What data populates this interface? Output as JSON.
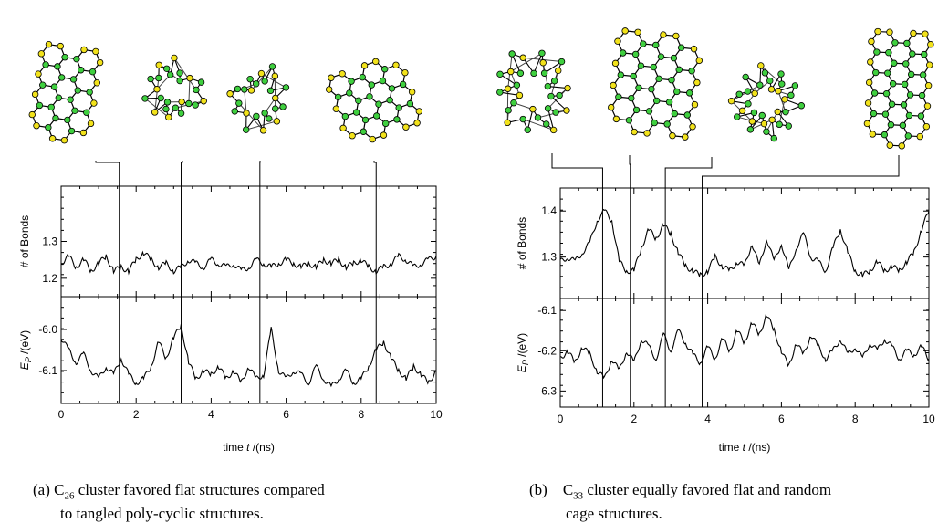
{
  "colors": {
    "edge_atom": "#f2e21b",
    "core_atom": "#3fcf3f",
    "bond": "#000000",
    "trace": "#000000"
  },
  "chart_data": [
    {
      "type": "line",
      "panel": "a",
      "caption": {
        "tag": "(a)",
        "text_lines": [
          "C26 cluster favored flat structures compared",
          "to tangled poly-cyclic structures."
        ],
        "species": "C",
        "subscript": "26",
        "rest1": " cluster favored flat structures compared",
        "line2": "to tangled poly-cyclic structures."
      },
      "xlabel": "time t /(ns)",
      "xlabel_parts": {
        "pre": "time ",
        "var": "t",
        "post": " /(ns)"
      },
      "xlim": [
        0,
        10
      ],
      "xticks": [
        "0",
        "2",
        "4",
        "6",
        "8",
        "10"
      ],
      "snapshot_times": [
        1.55,
        3.2,
        5.3,
        8.4
      ],
      "subplots": [
        {
          "ylabel": "# of Bonds",
          "ylim": [
            1.15,
            1.45
          ],
          "yticks": [
            "1.2",
            "1.3"
          ],
          "series": [
            {
              "x": [
                0,
                0.2,
                0.4,
                0.6,
                0.8,
                1.0,
                1.2,
                1.4,
                1.6,
                1.8,
                2.0,
                2.2,
                2.4,
                2.6,
                2.8,
                3.0,
                3.2,
                3.4,
                3.6,
                3.8,
                4.0,
                4.2,
                4.4,
                4.6,
                4.8,
                5.0,
                5.2,
                5.4,
                5.6,
                5.8,
                6.0,
                6.2,
                6.4,
                6.6,
                6.8,
                7.0,
                7.2,
                7.4,
                7.6,
                7.8,
                8.0,
                8.2,
                8.4,
                8.6,
                8.8,
                9.0,
                9.2,
                9.4,
                9.6,
                9.8,
                10.0
              ],
              "y": [
                1.24,
                1.26,
                1.23,
                1.25,
                1.22,
                1.24,
                1.26,
                1.22,
                1.23,
                1.22,
                1.25,
                1.27,
                1.25,
                1.23,
                1.24,
                1.22,
                1.23,
                1.25,
                1.24,
                1.23,
                1.25,
                1.24,
                1.23,
                1.24,
                1.22,
                1.23,
                1.25,
                1.24,
                1.23,
                1.24,
                1.25,
                1.24,
                1.23,
                1.24,
                1.23,
                1.25,
                1.24,
                1.25,
                1.23,
                1.24,
                1.25,
                1.23,
                1.22,
                1.23,
                1.24,
                1.26,
                1.25,
                1.23,
                1.24,
                1.25,
                1.26
              ]
            }
          ]
        },
        {
          "ylabel": "E_P /(eV)",
          "ylabel_parts": {
            "var": "E",
            "sub": "P",
            "post": " /(eV)"
          },
          "ylim": [
            -6.18,
            -5.92
          ],
          "yticks": [
            "-6.0",
            "-6.1"
          ],
          "series": [
            {
              "x": [
                0,
                0.2,
                0.4,
                0.6,
                0.8,
                1.0,
                1.2,
                1.4,
                1.6,
                1.8,
                2.0,
                2.2,
                2.4,
                2.6,
                2.8,
                3.0,
                3.2,
                3.4,
                3.6,
                3.8,
                4.0,
                4.2,
                4.4,
                4.6,
                4.8,
                5.0,
                5.2,
                5.4,
                5.6,
                5.8,
                6.0,
                6.2,
                6.4,
                6.6,
                6.8,
                7.0,
                7.2,
                7.4,
                7.6,
                7.8,
                8.0,
                8.2,
                8.4,
                8.6,
                8.8,
                9.0,
                9.2,
                9.4,
                9.6,
                9.8,
                10.0
              ],
              "y": [
                -6.02,
                -6.05,
                -6.08,
                -6.06,
                -6.1,
                -6.12,
                -6.09,
                -6.11,
                -6.07,
                -6.11,
                -6.13,
                -6.12,
                -6.09,
                -6.03,
                -6.07,
                -6.02,
                -5.99,
                -6.08,
                -6.12,
                -6.1,
                -6.11,
                -6.09,
                -6.12,
                -6.1,
                -6.13,
                -6.09,
                -6.12,
                -6.11,
                -6.0,
                -6.1,
                -6.12,
                -6.1,
                -6.11,
                -6.13,
                -6.09,
                -6.12,
                -6.14,
                -6.12,
                -6.1,
                -6.13,
                -6.12,
                -6.09,
                -6.05,
                -6.03,
                -6.07,
                -6.1,
                -6.12,
                -6.09,
                -6.11,
                -6.13,
                -6.1
              ]
            }
          ]
        }
      ]
    },
    {
      "type": "line",
      "panel": "b",
      "caption": {
        "tag": "(b)",
        "text_lines": [
          "C33 cluster equally favored flat and random",
          "cage structures."
        ],
        "species": "C",
        "subscript": "33",
        "rest1": " cluster equally favored flat and random",
        "line2": "cage structures."
      },
      "xlabel": "time t /(ns)",
      "xlabel_parts": {
        "pre": "time ",
        "var": "t",
        "post": " /(ns)"
      },
      "xlim": [
        0,
        10
      ],
      "xticks": [
        "0",
        "2",
        "4",
        "6",
        "8",
        "10"
      ],
      "snapshot_times": [
        1.15,
        1.9,
        2.85,
        3.85
      ],
      "subplots": [
        {
          "ylabel": "# of Bonds",
          "ylim": [
            1.21,
            1.45
          ],
          "yticks": [
            "1.4",
            "1.3"
          ],
          "series": [
            {
              "x": [
                0,
                0.2,
                0.4,
                0.6,
                0.8,
                1.0,
                1.2,
                1.4,
                1.6,
                1.8,
                2.0,
                2.2,
                2.4,
                2.6,
                2.8,
                3.0,
                3.2,
                3.4,
                3.6,
                3.8,
                4.0,
                4.2,
                4.4,
                4.6,
                4.8,
                5.0,
                5.2,
                5.4,
                5.6,
                5.8,
                6.0,
                6.2,
                6.4,
                6.6,
                6.8,
                7.0,
                7.2,
                7.4,
                7.6,
                7.8,
                8.0,
                8.2,
                8.4,
                8.6,
                8.8,
                9.0,
                9.2,
                9.4,
                9.6,
                9.8,
                10.0
              ],
              "y": [
                1.29,
                1.3,
                1.29,
                1.31,
                1.33,
                1.38,
                1.4,
                1.38,
                1.29,
                1.27,
                1.27,
                1.32,
                1.36,
                1.34,
                1.37,
                1.35,
                1.31,
                1.28,
                1.27,
                1.26,
                1.27,
                1.3,
                1.28,
                1.27,
                1.29,
                1.28,
                1.33,
                1.28,
                1.34,
                1.29,
                1.33,
                1.27,
                1.32,
                1.35,
                1.3,
                1.29,
                1.27,
                1.32,
                1.36,
                1.31,
                1.27,
                1.26,
                1.27,
                1.29,
                1.27,
                1.28,
                1.27,
                1.29,
                1.31,
                1.36,
                1.4
              ]
            }
          ]
        },
        {
          "ylabel": "E_P /(eV)",
          "ylabel_parts": {
            "var": "E",
            "sub": "P",
            "post": " /(eV)"
          },
          "ylim": [
            -6.34,
            -6.07
          ],
          "yticks": [
            "-6.1",
            "-6.2",
            "-6.3"
          ],
          "series": [
            {
              "x": [
                0,
                0.2,
                0.4,
                0.6,
                0.8,
                1.0,
                1.2,
                1.4,
                1.6,
                1.8,
                2.0,
                2.2,
                2.4,
                2.6,
                2.8,
                3.0,
                3.2,
                3.4,
                3.6,
                3.8,
                4.0,
                4.2,
                4.4,
                4.6,
                4.8,
                5.0,
                5.2,
                5.4,
                5.6,
                5.8,
                6.0,
                6.2,
                6.4,
                6.6,
                6.8,
                7.0,
                7.2,
                7.4,
                7.6,
                7.8,
                8.0,
                8.2,
                8.4,
                8.6,
                8.8,
                9.0,
                9.2,
                9.4,
                9.6,
                9.8,
                10.0
              ],
              "y": [
                -6.22,
                -6.2,
                -6.23,
                -6.19,
                -6.21,
                -6.25,
                -6.27,
                -6.22,
                -6.25,
                -6.2,
                -6.23,
                -6.17,
                -6.19,
                -6.22,
                -6.16,
                -6.2,
                -6.15,
                -6.18,
                -6.21,
                -6.23,
                -6.19,
                -6.22,
                -6.17,
                -6.2,
                -6.15,
                -6.18,
                -6.13,
                -6.16,
                -6.11,
                -6.15,
                -6.2,
                -6.24,
                -6.18,
                -6.21,
                -6.16,
                -6.19,
                -6.22,
                -6.2,
                -6.17,
                -6.21,
                -6.19,
                -6.22,
                -6.18,
                -6.2,
                -6.17,
                -6.19,
                -6.22,
                -6.2,
                -6.21,
                -6.19,
                -6.22
              ]
            }
          ]
        }
      ]
    }
  ]
}
